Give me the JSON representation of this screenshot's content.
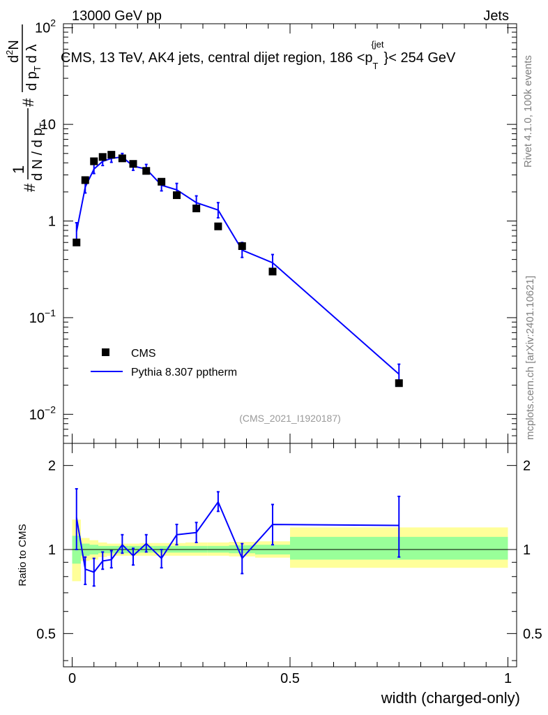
{
  "header": {
    "left": "13000 GeV pp",
    "right": "Jets"
  },
  "title_parts": {
    "main": "CMS, 13 TeV, AK4 jets, central dijet region, 186 <p",
    "sub": "T",
    "sup": "{jet",
    "tail": "}< 254 GeV"
  },
  "sidebar": {
    "rivet": "Rivet 4.1.0,  100k events",
    "mcplots": "mcplots.cern.ch [arXiv:2401.10621]"
  },
  "watermark": "(CMS_2021_I1920187)",
  "legend": {
    "data_label": "CMS",
    "mc_label": "Pythia 8.307 pptherm"
  },
  "ylabel_parts": {
    "hash": "#",
    "one": "1",
    "dn": "d N / d p",
    "pt_sub": "T",
    "hash2": "#",
    "d2n": "d",
    "two": "2",
    "n": "N",
    "dpt": "d p",
    "dl": "d λ"
  },
  "ratio_ylabel": "Ratio to CMS",
  "xlabel": "width (charged-only)",
  "colors": {
    "mc": "#0000ff",
    "band_inner": "#99ff99",
    "band_outer": "#ffff99",
    "data": "#000000"
  },
  "chart_data": {
    "type": "line",
    "x_ticks": [
      {
        "v": 0,
        "label": "0"
      },
      {
        "v": 0.5,
        "label": "0.5"
      },
      {
        "v": 1,
        "label": "1"
      }
    ],
    "main": {
      "yscale": "log",
      "ylim": [
        0.005,
        110
      ],
      "xlim": [
        -0.02,
        1.02
      ],
      "y_ticks": [
        {
          "v": 0.01,
          "base": "10",
          "exp": "−2"
        },
        {
          "v": 0.1,
          "base": "10",
          "exp": "−1"
        },
        {
          "v": 1,
          "base": "1",
          "exp": ""
        },
        {
          "v": 10,
          "base": "10",
          "exp": ""
        },
        {
          "v": 100,
          "base": "10",
          "exp": "2"
        }
      ],
      "data": {
        "name": "CMS",
        "points": [
          {
            "x": 0.01,
            "y": 0.6
          },
          {
            "x": 0.03,
            "y": 2.65
          },
          {
            "x": 0.05,
            "y": 4.15
          },
          {
            "x": 0.07,
            "y": 4.6
          },
          {
            "x": 0.09,
            "y": 4.85
          },
          {
            "x": 0.115,
            "y": 4.45
          },
          {
            "x": 0.14,
            "y": 3.9
          },
          {
            "x": 0.17,
            "y": 3.3
          },
          {
            "x": 0.205,
            "y": 2.55
          },
          {
            "x": 0.24,
            "y": 1.85
          },
          {
            "x": 0.285,
            "y": 1.35
          },
          {
            "x": 0.335,
            "y": 0.88
          },
          {
            "x": 0.39,
            "y": 0.55
          },
          {
            "x": 0.46,
            "y": 0.3
          },
          {
            "x": 0.75,
            "y": 0.021
          }
        ]
      },
      "mc": {
        "name": "Pythia 8.307 pptherm",
        "points": [
          {
            "x": 0.01,
            "y": 0.78,
            "lo": 0.62,
            "hi": 0.96
          },
          {
            "x": 0.03,
            "y": 2.25,
            "lo": 1.95,
            "hi": 2.6
          },
          {
            "x": 0.05,
            "y": 3.45,
            "lo": 3.1,
            "hi": 3.85
          },
          {
            "x": 0.07,
            "y": 4.15,
            "lo": 3.75,
            "hi": 4.55
          },
          {
            "x": 0.09,
            "y": 4.45,
            "lo": 4.05,
            "hi": 4.9
          },
          {
            "x": 0.115,
            "y": 4.6,
            "lo": 4.2,
            "hi": 5.0
          },
          {
            "x": 0.14,
            "y": 3.7,
            "lo": 3.35,
            "hi": 4.05
          },
          {
            "x": 0.17,
            "y": 3.45,
            "lo": 3.1,
            "hi": 3.85
          },
          {
            "x": 0.205,
            "y": 2.35,
            "lo": 2.05,
            "hi": 2.7
          },
          {
            "x": 0.24,
            "y": 2.1,
            "lo": 1.8,
            "hi": 2.45
          },
          {
            "x": 0.285,
            "y": 1.55,
            "lo": 1.3,
            "hi": 1.82
          },
          {
            "x": 0.335,
            "y": 1.3,
            "lo": 1.08,
            "hi": 1.55
          },
          {
            "x": 0.39,
            "y": 0.5,
            "lo": 0.42,
            "hi": 0.6
          },
          {
            "x": 0.46,
            "y": 0.37,
            "lo": 0.3,
            "hi": 0.45
          },
          {
            "x": 0.75,
            "y": 0.026,
            "lo": 0.02,
            "hi": 0.033
          }
        ]
      }
    },
    "ratio": {
      "yscale": "log",
      "ylim": [
        0.38,
        2.4
      ],
      "y_ticks": [
        {
          "v": 0.5,
          "label": "0.5"
        },
        {
          "v": 1,
          "label": "1"
        },
        {
          "v": 2,
          "label": "2"
        }
      ],
      "bands": [
        {
          "x0": 0.0,
          "x1": 0.02,
          "in_lo": 0.89,
          "in_hi": 1.12,
          "out_lo": 0.77,
          "out_hi": 1.28
        },
        {
          "x0": 0.02,
          "x1": 0.04,
          "in_lo": 0.95,
          "in_hi": 1.05,
          "out_lo": 0.91,
          "out_hi": 1.1
        },
        {
          "x0": 0.04,
          "x1": 0.06,
          "in_lo": 0.96,
          "in_hi": 1.04,
          "out_lo": 0.92,
          "out_hi": 1.08
        },
        {
          "x0": 0.06,
          "x1": 0.08,
          "in_lo": 0.97,
          "in_hi": 1.03,
          "out_lo": 0.94,
          "out_hi": 1.06
        },
        {
          "x0": 0.08,
          "x1": 0.1,
          "in_lo": 0.97,
          "in_hi": 1.03,
          "out_lo": 0.95,
          "out_hi": 1.05
        },
        {
          "x0": 0.1,
          "x1": 0.13,
          "in_lo": 0.97,
          "in_hi": 1.03,
          "out_lo": 0.95,
          "out_hi": 1.05
        },
        {
          "x0": 0.13,
          "x1": 0.155,
          "in_lo": 0.97,
          "in_hi": 1.03,
          "out_lo": 0.95,
          "out_hi": 1.05
        },
        {
          "x0": 0.155,
          "x1": 0.185,
          "in_lo": 0.975,
          "in_hi": 1.03,
          "out_lo": 0.95,
          "out_hi": 1.055
        },
        {
          "x0": 0.185,
          "x1": 0.22,
          "in_lo": 0.975,
          "in_hi": 1.03,
          "out_lo": 0.95,
          "out_hi": 1.055
        },
        {
          "x0": 0.22,
          "x1": 0.26,
          "in_lo": 0.975,
          "in_hi": 1.03,
          "out_lo": 0.95,
          "out_hi": 1.055
        },
        {
          "x0": 0.26,
          "x1": 0.31,
          "in_lo": 0.975,
          "in_hi": 1.03,
          "out_lo": 0.95,
          "out_hi": 1.06
        },
        {
          "x0": 0.31,
          "x1": 0.36,
          "in_lo": 0.975,
          "in_hi": 1.03,
          "out_lo": 0.95,
          "out_hi": 1.06
        },
        {
          "x0": 0.36,
          "x1": 0.42,
          "in_lo": 0.97,
          "in_hi": 1.035,
          "out_lo": 0.945,
          "out_hi": 1.065
        },
        {
          "x0": 0.42,
          "x1": 0.5,
          "in_lo": 0.96,
          "in_hi": 1.04,
          "out_lo": 0.935,
          "out_hi": 1.07
        },
        {
          "x0": 0.5,
          "x1": 1.0,
          "in_lo": 0.92,
          "in_hi": 1.11,
          "out_lo": 0.86,
          "out_hi": 1.2
        }
      ],
      "mc": {
        "name": "Pythia 8.307 pptherm / CMS",
        "points": [
          {
            "x": 0.01,
            "y": 1.3,
            "lo": 1.0,
            "hi": 1.65
          },
          {
            "x": 0.03,
            "y": 0.85,
            "lo": 0.75,
            "hi": 0.94
          },
          {
            "x": 0.05,
            "y": 0.83,
            "lo": 0.74,
            "hi": 0.93
          },
          {
            "x": 0.07,
            "y": 0.91,
            "lo": 0.85,
            "hi": 0.98
          },
          {
            "x": 0.09,
            "y": 0.92,
            "lo": 0.86,
            "hi": 0.99
          },
          {
            "x": 0.115,
            "y": 1.04,
            "lo": 0.97,
            "hi": 1.13
          },
          {
            "x": 0.14,
            "y": 0.95,
            "lo": 0.88,
            "hi": 1.01
          },
          {
            "x": 0.17,
            "y": 1.05,
            "lo": 0.98,
            "hi": 1.13
          },
          {
            "x": 0.205,
            "y": 0.93,
            "lo": 0.86,
            "hi": 1.0
          },
          {
            "x": 0.24,
            "y": 1.13,
            "lo": 1.04,
            "hi": 1.23
          },
          {
            "x": 0.285,
            "y": 1.15,
            "lo": 1.06,
            "hi": 1.25
          },
          {
            "x": 0.335,
            "y": 1.48,
            "lo": 1.37,
            "hi": 1.61
          },
          {
            "x": 0.39,
            "y": 0.93,
            "lo": 0.82,
            "hi": 1.05
          },
          {
            "x": 0.46,
            "y": 1.23,
            "lo": 1.04,
            "hi": 1.45
          },
          {
            "x": 0.75,
            "y": 1.22,
            "lo": 0.94,
            "hi": 1.55
          }
        ]
      }
    }
  }
}
